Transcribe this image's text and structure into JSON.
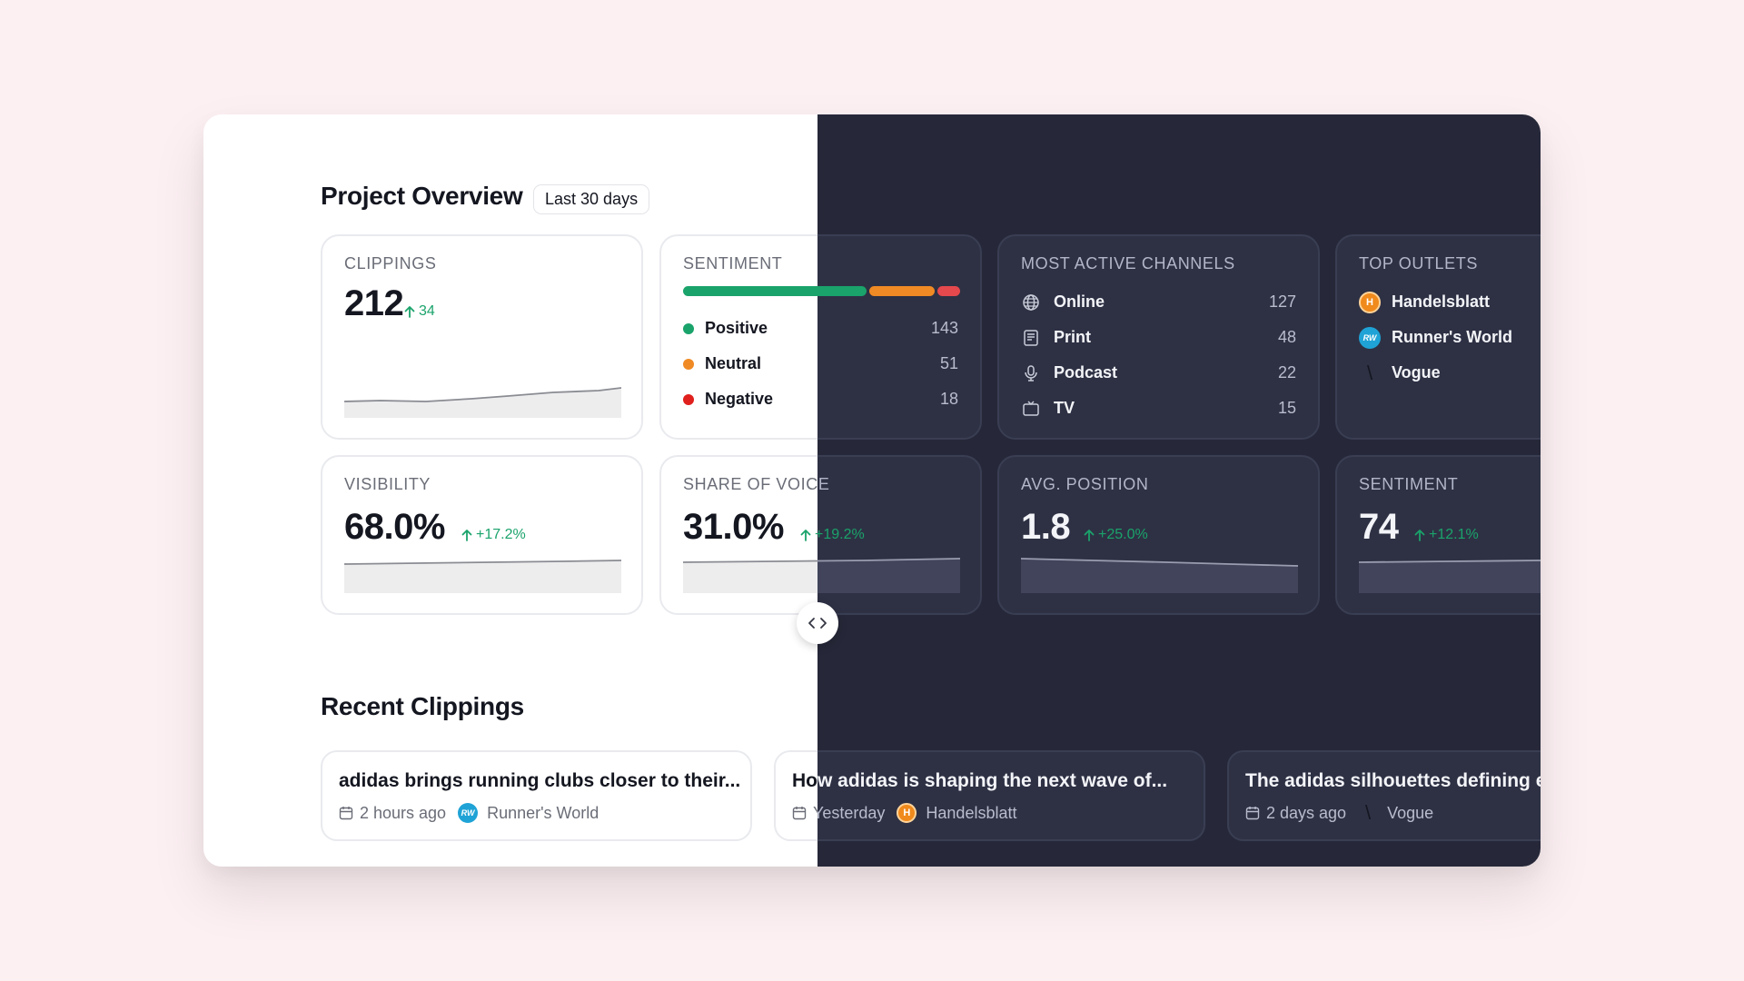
{
  "overview": {
    "title": "Project Overview",
    "period": "Last 30 days"
  },
  "clippings": {
    "label": "CLIPPINGS",
    "value": "212",
    "delta": "34"
  },
  "sentiment": {
    "label": "SENTIMENT",
    "items": [
      {
        "label": "Positive",
        "count": "143",
        "color": "#1aa36b"
      },
      {
        "label": "Neutral",
        "count": "51",
        "color": "#f08a24"
      },
      {
        "label": "Negative",
        "count": "18",
        "color": "#e5484d"
      }
    ]
  },
  "channels": {
    "label": "MOST ACTIVE CHANNELS",
    "items": [
      {
        "label": "Online",
        "count": "127",
        "icon": "globe-icon"
      },
      {
        "label": "Print",
        "count": "48",
        "icon": "newspaper-icon"
      },
      {
        "label": "Podcast",
        "count": "22",
        "icon": "microphone-icon"
      },
      {
        "label": "TV",
        "count": "15",
        "icon": "tv-icon"
      }
    ]
  },
  "outlets": {
    "label": "TOP OUTLETS",
    "items": [
      {
        "label": "Handelsblatt",
        "logo": "H"
      },
      {
        "label": "Runner's World",
        "logo": "RW"
      },
      {
        "label": "Vogue",
        "logo": "\\"
      }
    ]
  },
  "visibility": {
    "label": "VISIBILITY",
    "value": "68.0%",
    "delta": "+17.2%"
  },
  "share_of_voice": {
    "label": "SHARE OF VOICE",
    "value": "31.0%",
    "delta": "+19.2%"
  },
  "avg_position": {
    "label": "AVG. POSITION",
    "value": "1.8",
    "delta": "+25.0%"
  },
  "sentiment_score": {
    "label": "SENTIMENT",
    "value": "74",
    "delta": "+12.1%"
  },
  "recent": {
    "title": "Recent Clippings",
    "items": [
      {
        "title": "adidas brings running clubs closer to their...",
        "time": "2 hours ago",
        "outlet": "Runner's World",
        "logo": "RW"
      },
      {
        "title": "How adidas is shaping the next wave of...",
        "time": "Yesterday",
        "outlet": "Handelsblatt",
        "logo": "H"
      },
      {
        "title": "The adidas silhouettes defining e",
        "time": "2 days ago",
        "outlet": "Vogue",
        "logo": "\\"
      }
    ]
  },
  "theme_colors": {
    "light_background": "#ffffff",
    "dark_background": "#262839",
    "positive": "#1aa36b",
    "neutral": "#f08a24",
    "negative": "#e5484d"
  }
}
